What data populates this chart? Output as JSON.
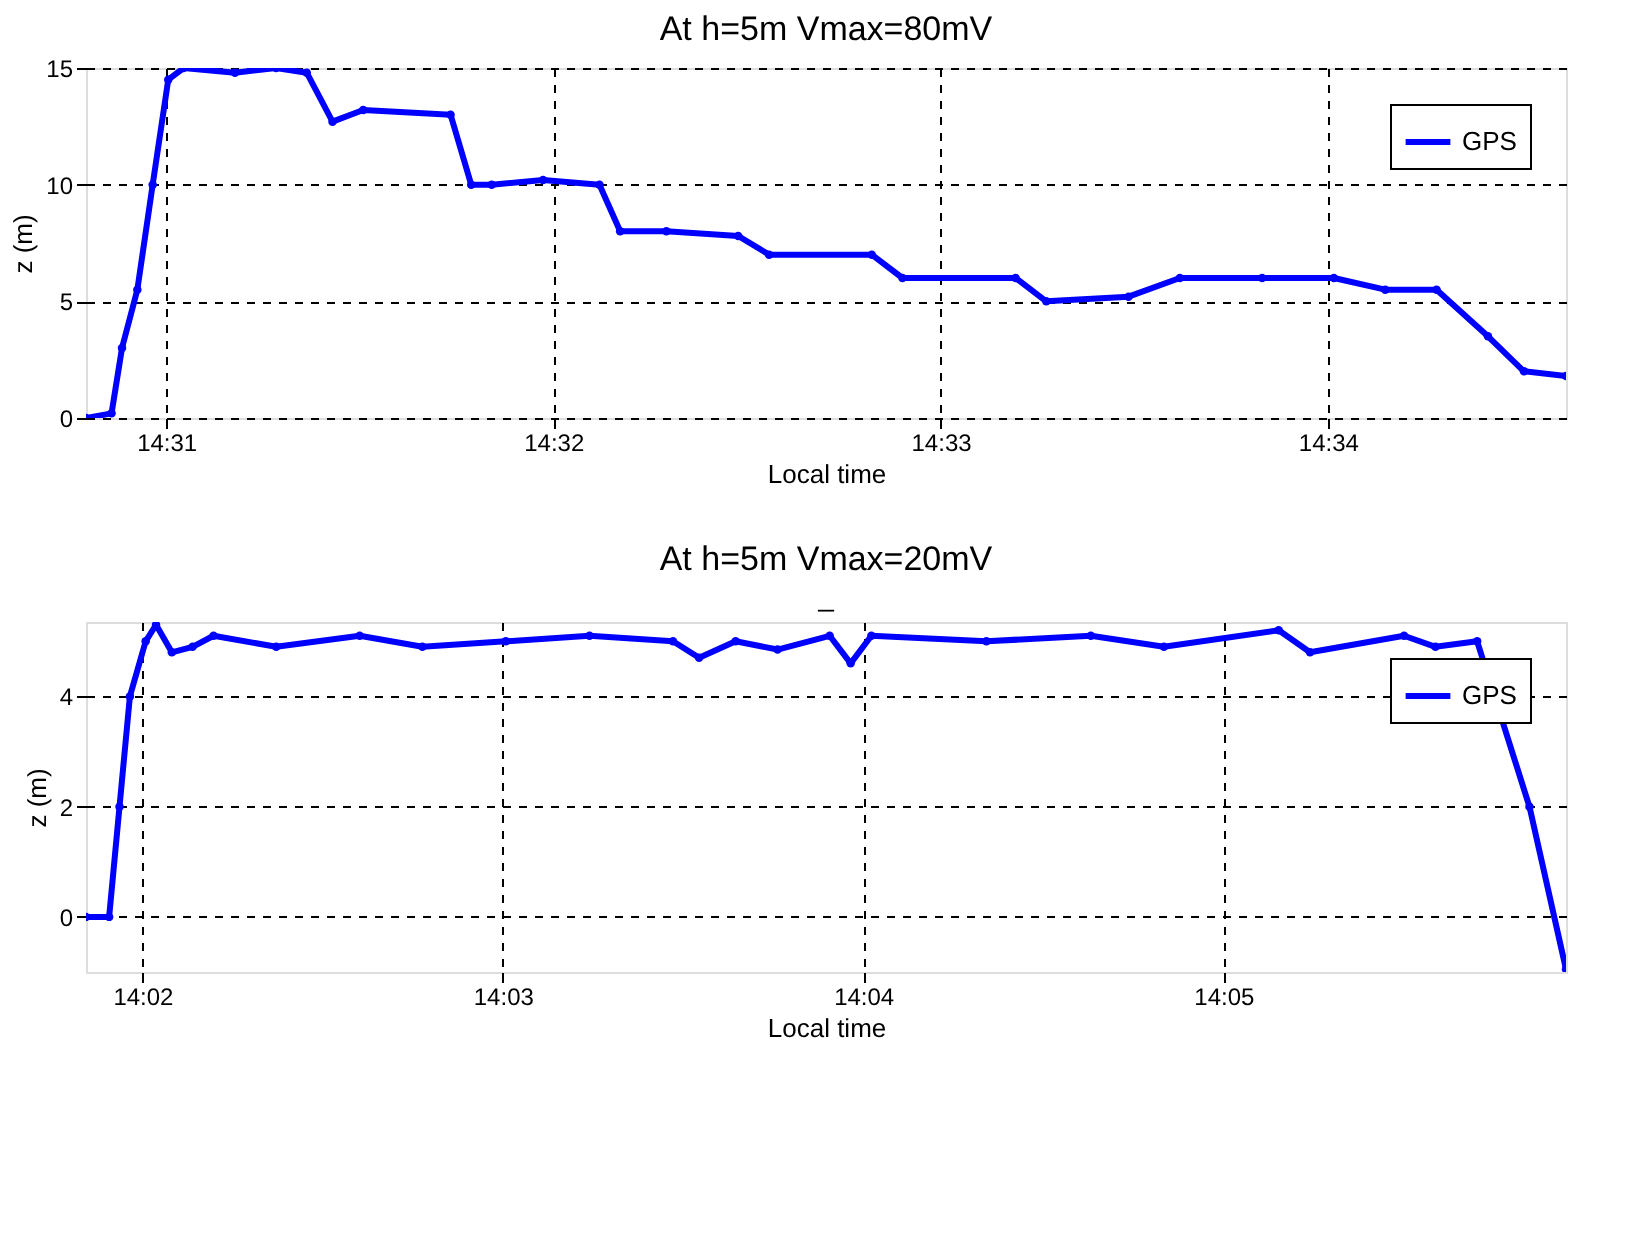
{
  "chart_data": [
    {
      "type": "line",
      "title": "At h=5m  Vmax=80mV",
      "xlabel": "Local time",
      "ylabel": "z (m)",
      "series": [
        {
          "name": "GPS",
          "color": "#0000ff",
          "x": [
            14.51322,
            14.51432,
            14.51477,
            14.51543,
            14.51609,
            14.51676,
            14.51742,
            14.51963,
            14.5214,
            14.52272,
            14.52383,
            14.52515,
            14.52891,
            14.5298,
            14.53068,
            14.53289,
            14.53532,
            14.53621,
            14.5382,
            14.54129,
            14.54262,
            14.54704,
            14.54836,
            14.55323,
            14.55455,
            14.55809,
            14.5603,
            14.56384,
            14.56693,
            14.56914,
            14.57135,
            14.57356,
            14.57511,
            14.57692
          ],
          "values": [
            0,
            0.2,
            3,
            5.5,
            10,
            14.5,
            15,
            14.8,
            15,
            14.8,
            12.7,
            13.2,
            13,
            10,
            10,
            10.2,
            10,
            8,
            8,
            7.8,
            7,
            7,
            6,
            6,
            5,
            5.2,
            6,
            6,
            6,
            5.5,
            5.5,
            3.5,
            2,
            1.8
          ]
        }
      ],
      "xlim": [
        14.51322,
        14.57692
      ],
      "xticks": [
        {
          "value": 14.51667,
          "label": "14:31"
        },
        {
          "value": 14.53333,
          "label": "14:32"
        },
        {
          "value": 14.55,
          "label": "14:33"
        },
        {
          "value": 14.56667,
          "label": "14:34"
        }
      ],
      "ylim": [
        0,
        15
      ],
      "yticks": [
        0,
        5,
        10,
        15
      ],
      "grid": true,
      "legend": "top right",
      "marker": "circle",
      "line_style": "solid"
    },
    {
      "type": "line",
      "title": "At h=5m  Vmax=20mV",
      "subtitle": "_",
      "xlabel": "Local time",
      "ylabel": "z (m)",
      "series": [
        {
          "name": "GPS",
          "color": "#0000ff",
          "x": [
            14.03072,
            14.03179,
            14.03227,
            14.03275,
            14.03348,
            14.03396,
            14.03469,
            14.03565,
            14.03662,
            14.03952,
            14.04338,
            14.04628,
            14.05014,
            14.05401,
            14.05787,
            14.05908,
            14.06077,
            14.06271,
            14.06512,
            14.06609,
            14.06705,
            14.07237,
            14.0772,
            14.08058,
            14.08589,
            14.08734,
            14.09169,
            14.09314,
            14.09507,
            14.09749,
            14.09918
          ],
          "values": [
            0,
            0,
            2,
            4,
            5,
            5.3,
            4.8,
            4.9,
            5.1,
            4.9,
            5.1,
            4.9,
            5,
            5.1,
            5,
            4.7,
            5,
            4.85,
            5.1,
            4.6,
            5.1,
            5,
            5.1,
            4.9,
            5.2,
            4.8,
            5.1,
            4.9,
            5,
            2,
            -0.95
          ]
        }
      ],
      "xlim": [
        14.03072,
        14.09918
      ],
      "xticks": [
        {
          "value": 14.03333,
          "label": "14:02"
        },
        {
          "value": 14.05,
          "label": "14:03"
        },
        {
          "value": 14.06667,
          "label": "14:04"
        },
        {
          "value": 14.08333,
          "label": "14:05"
        }
      ],
      "ylim": [
        -1,
        5.35
      ],
      "yticks": [
        0,
        2,
        4
      ],
      "grid": true,
      "legend": "top right",
      "marker": "circle",
      "line_style": "solid"
    }
  ]
}
